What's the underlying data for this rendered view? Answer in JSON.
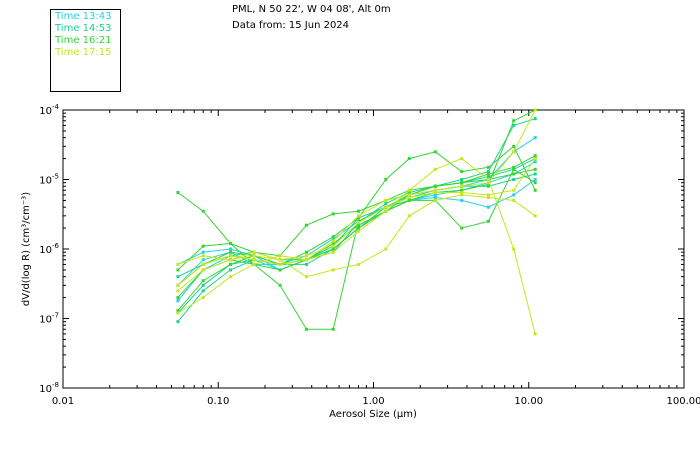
{
  "header": {
    "station": "PML, N 50 22', W 04 08', Alt 0m",
    "data_from": "Data from: 15 Jun 2024"
  },
  "legend": [
    {
      "label": "Time 13:43",
      "color": "#22d3e6"
    },
    {
      "label": "Time 14:53",
      "color": "#19d48f"
    },
    {
      "label": "Time 16:21",
      "color": "#33d633"
    },
    {
      "label": "Time 17:15",
      "color": "#c8e61e"
    }
  ],
  "chart_data": {
    "type": "line",
    "xscale": "log",
    "yscale": "log",
    "xlim": [
      0.01,
      100
    ],
    "ylim": [
      1e-08,
      0.0001
    ],
    "xlabel": "Aerosol Size (µm)",
    "ylabel": "dV/d(log R) (cm³/cm⁻³)",
    "x_tick_labels": [
      "0.01",
      "0.10",
      "1.00",
      "10.00",
      "100.00"
    ],
    "y_tick_labels": [
      {
        "mantissa": "10",
        "exp": "-4"
      },
      {
        "mantissa": "10",
        "exp": "-5"
      },
      {
        "mantissa": "10",
        "exp": "-6"
      },
      {
        "mantissa": "10",
        "exp": "-7"
      },
      {
        "mantissa": "10",
        "exp": "-8"
      }
    ],
    "x": [
      0.055,
      0.08,
      0.12,
      0.17,
      0.25,
      0.37,
      0.55,
      0.8,
      1.2,
      1.7,
      2.5,
      3.7,
      5.5,
      8.0,
      11.0
    ],
    "series": [
      {
        "name": "Time 13:43",
        "color": "#22d3e6",
        "values": [
          1.8e-07,
          5e-07,
          8e-07,
          7e-07,
          5e-07,
          7e-07,
          1e-06,
          2e-06,
          3.5e-06,
          5e-06,
          6e-06,
          7e-06,
          9e-06,
          1.2e-05,
          1.8e-05
        ]
      },
      {
        "name": "Time 13:43",
        "color": "#22d3e6",
        "values": [
          3e-07,
          7e-07,
          9e-07,
          6e-07,
          6e-07,
          8e-07,
          1.4e-06,
          2.5e-06,
          4e-06,
          5.5e-06,
          7e-06,
          8e-06,
          1e-05,
          2.5e-05,
          4e-05
        ]
      },
      {
        "name": "Time 13:43",
        "color": "#22d3e6",
        "values": [
          6e-07,
          9e-07,
          1e-06,
          8e-07,
          5e-07,
          7e-07,
          1.2e-06,
          2.2e-06,
          3.5e-06,
          5e-06,
          5.5e-06,
          5e-06,
          4e-06,
          6e-06,
          1e-05
        ]
      },
      {
        "name": "Time 14:53",
        "color": "#19d48f",
        "values": [
          1.2e-07,
          3e-07,
          6e-07,
          7e-07,
          6e-07,
          6e-07,
          1e-06,
          2e-06,
          4e-06,
          6e-06,
          8e-06,
          9e-06,
          1.1e-05,
          1.4e-05,
          2e-05
        ]
      },
      {
        "name": "Time 14:53",
        "color": "#19d48f",
        "values": [
          9e-08,
          2.5e-07,
          5e-07,
          7e-07,
          6e-07,
          7e-07,
          9e-07,
          2.4e-06,
          4.5e-06,
          6.5e-06,
          8e-06,
          1e-05,
          1.3e-05,
          6e-05,
          7.5e-05
        ]
      },
      {
        "name": "Time 14:53",
        "color": "#19d48f",
        "values": [
          4e-07,
          6e-07,
          8e-07,
          9e-07,
          7e-07,
          7e-07,
          1.1e-06,
          2.8e-06,
          4e-06,
          6e-06,
          7e-06,
          8e-06,
          8e-06,
          1e-05,
          1.2e-05
        ]
      },
      {
        "name": "Time 16:21",
        "color": "#33d633",
        "values": [
          6.5e-06,
          3.5e-06,
          1.2e-06,
          6e-07,
          3e-07,
          7e-08,
          7e-08,
          2.5e-06,
          4e-06,
          5e-06,
          5e-06,
          2e-06,
          2.5e-06,
          1.4e-05,
          9e-06
        ]
      },
      {
        "name": "Time 16:21",
        "color": "#33d633",
        "values": [
          2e-07,
          5e-07,
          7e-07,
          6e-07,
          5e-07,
          7e-07,
          1e-06,
          2e-06,
          3.5e-06,
          6e-06,
          8e-06,
          9e-06,
          1.2e-05,
          1.5e-05,
          2.2e-05
        ]
      },
      {
        "name": "Time 16:21",
        "color": "#33d633",
        "values": [
          5e-07,
          1.1e-06,
          1.2e-06,
          9e-07,
          8e-07,
          2.2e-06,
          3.2e-06,
          3.5e-06,
          5e-06,
          7e-06,
          8e-06,
          9e-06,
          1e-05,
          1.2e-05,
          1.4e-05
        ]
      },
      {
        "name": "Time 16:21",
        "color": "#33d633",
        "values": [
          1.3e-07,
          3.5e-07,
          6e-07,
          8e-07,
          6e-07,
          9e-07,
          1.5e-06,
          2.8e-06,
          1e-05,
          2e-05,
          2.5e-05,
          1.3e-05,
          1.5e-05,
          3e-05,
          7e-06
        ]
      },
      {
        "name": "Time 16:21",
        "color": "#33d633",
        "values": [
          3e-07,
          6e-07,
          9e-07,
          8e-07,
          6e-07,
          7e-07,
          1.2e-06,
          2.2e-06,
          3.5e-06,
          5e-06,
          6.5e-06,
          7e-06,
          8.5e-06,
          7e-05,
          0.00012
        ]
      },
      {
        "name": "Time 17:15",
        "color": "#c8e61e",
        "values": [
          6e-07,
          8e-07,
          7e-07,
          9e-07,
          7e-07,
          4e-07,
          5e-07,
          6e-07,
          1e-06,
          3e-06,
          5e-06,
          6e-06,
          5.5e-06,
          5e-06,
          3e-06
        ]
      },
      {
        "name": "Time 17:15",
        "color": "#c8e61e",
        "values": [
          2.5e-07,
          5e-07,
          7e-07,
          8e-07,
          7e-07,
          8e-07,
          1.1e-06,
          2.4e-06,
          4e-06,
          5.5e-06,
          6.5e-06,
          6.5e-06,
          6e-06,
          7e-06,
          2e-05
        ]
      },
      {
        "name": "Time 17:15",
        "color": "#c8e61e",
        "values": [
          3e-07,
          6e-07,
          8e-07,
          7e-07,
          6e-07,
          7e-07,
          9e-07,
          1.8e-06,
          3.5e-06,
          7e-06,
          1.4e-05,
          2e-05,
          1e-05,
          1e-06,
          6e-08
        ]
      },
      {
        "name": "Time 17:15",
        "color": "#c8e61e",
        "values": [
          1.2e-07,
          2e-07,
          4e-07,
          6e-07,
          8e-07,
          7e-07,
          1.3e-06,
          3e-06,
          5e-06,
          6e-06,
          7e-06,
          8e-06,
          9e-06,
          2.5e-05,
          0.0001
        ]
      }
    ]
  }
}
